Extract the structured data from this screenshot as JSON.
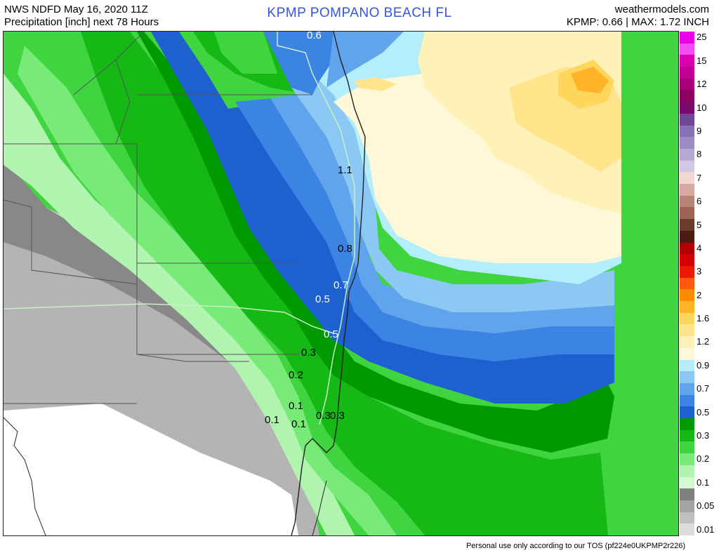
{
  "header": {
    "left_line1": "NWS NDFD May 16, 2020 11Z",
    "left_line2": "Precipitation [inch] next 78 Hours",
    "center_title": "KPMP   POMPANO BEACH   FL",
    "right_line1": "weathermodels.com",
    "right_line2": "KPMP: 0.66 | MAX: 1.72 INCH"
  },
  "legend": {
    "items": [
      {
        "label": "25",
        "color": "#e900e9"
      },
      {
        "label": "",
        "color": "#f24cf2"
      },
      {
        "label": "15",
        "color": "#d900b0"
      },
      {
        "label": "",
        "color": "#c00090"
      },
      {
        "label": "12",
        "color": "#a80078"
      },
      {
        "label": "",
        "color": "#8e0060"
      },
      {
        "label": "10",
        "color": "#7a0a6c"
      },
      {
        "label": "",
        "color": "#6e4a96"
      },
      {
        "label": "9",
        "color": "#8870b4"
      },
      {
        "label": "",
        "color": "#9c8cc4"
      },
      {
        "label": "8",
        "color": "#b6a8d4"
      },
      {
        "label": "",
        "color": "#d0c8e4"
      },
      {
        "label": "7",
        "color": "#f0d8d0"
      },
      {
        "label": "",
        "color": "#d6aaa0"
      },
      {
        "label": "6",
        "color": "#b88478"
      },
      {
        "label": "",
        "color": "#9c6456"
      },
      {
        "label": "5",
        "color": "#6a3a2c"
      },
      {
        "label": "",
        "color": "#4c1c12"
      },
      {
        "label": "4",
        "color": "#b00000"
      },
      {
        "label": "",
        "color": "#d40000"
      },
      {
        "label": "3",
        "color": "#ee1a00"
      },
      {
        "label": "",
        "color": "#ff5a10"
      },
      {
        "label": "2",
        "color": "#ff8c00"
      },
      {
        "label": "",
        "color": "#ffb428"
      },
      {
        "label": "1.6",
        "color": "#ffd65c"
      },
      {
        "label": "",
        "color": "#ffe48c"
      },
      {
        "label": "1.2",
        "color": "#fff2b8"
      },
      {
        "label": "",
        "color": "#fff8d8"
      },
      {
        "label": "0.9",
        "color": "#b4eefc"
      },
      {
        "label": "",
        "color": "#8cc8f4"
      },
      {
        "label": "0.7",
        "color": "#60a4ec"
      },
      {
        "label": "",
        "color": "#3c84e4"
      },
      {
        "label": "0.5",
        "color": "#1e60d0"
      },
      {
        "label": "",
        "color": "#009900"
      },
      {
        "label": "0.3",
        "color": "#16b816"
      },
      {
        "label": "",
        "color": "#40d440"
      },
      {
        "label": "0.2",
        "color": "#78ea78"
      },
      {
        "label": "",
        "color": "#b0f4b0"
      },
      {
        "label": "0.1",
        "color": "#d2fad2"
      },
      {
        "label": "",
        "color": "#808080"
      },
      {
        "label": "0.05",
        "color": "#a4a4a4"
      },
      {
        "label": "",
        "color": "#c0c0c0"
      },
      {
        "label": "0.01",
        "color": "#dcdcdc"
      }
    ]
  },
  "map": {
    "contour_labels": [
      {
        "text": "0.6",
        "color": "#ffffff"
      },
      {
        "text": "1.1",
        "color": "#000000"
      },
      {
        "text": "0.8",
        "color": "#000000"
      },
      {
        "text": "0.7",
        "color": "#ffffff"
      },
      {
        "text": "0.5",
        "color": "#ffffff"
      },
      {
        "text": "0.5",
        "color": "#ffffff"
      },
      {
        "text": "0.3",
        "color": "#000000"
      },
      {
        "text": "0.2",
        "color": "#000000"
      },
      {
        "text": "0.1",
        "color": "#000000"
      },
      {
        "text": "0.1",
        "color": "#000000"
      },
      {
        "text": "0.1",
        "color": "#000000"
      },
      {
        "text": "0.3",
        "color": "#000000"
      },
      {
        "text": "0.3",
        "color": "#000000"
      }
    ]
  },
  "footer": {
    "text": "Personal use only according to our TOS (pf224e0UKPMP2r226)"
  }
}
